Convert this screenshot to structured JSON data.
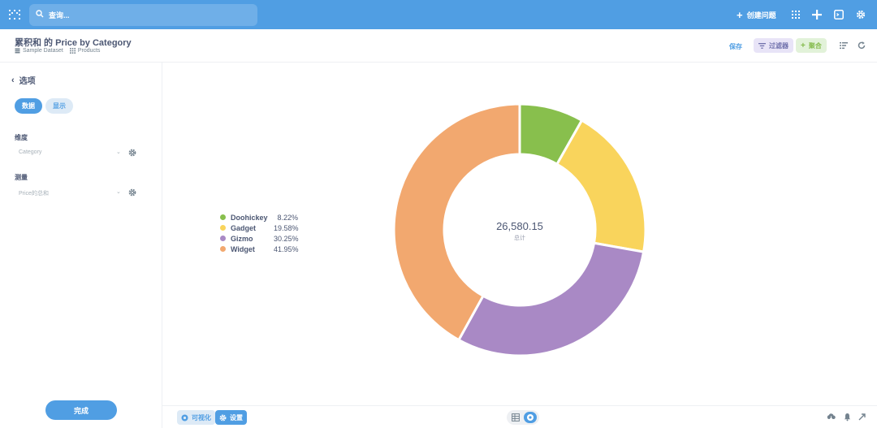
{
  "search": {
    "placeholder": "查询..."
  },
  "topnav": {
    "new_question": "创建问题"
  },
  "header": {
    "title": "累积和 的 Price by Category",
    "database": "Sample Dataset",
    "table": "Products",
    "save": "保存",
    "filter": "过滤器",
    "summarize": "聚合"
  },
  "sidebar": {
    "back": "选项",
    "tab_data": "数据",
    "tab_display": "显示",
    "dimension_label": "维度",
    "dimension_value": "Category",
    "measure_label": "测量",
    "measure_value": "Price的总和",
    "done": "完成"
  },
  "chart_data": {
    "type": "pie",
    "categories": [
      "Doohickey",
      "Gadget",
      "Gizmo",
      "Widget"
    ],
    "values": [
      8.22,
      19.58,
      30.25,
      41.95
    ],
    "labels": [
      "8.22%",
      "19.58%",
      "30.25%",
      "41.95%"
    ],
    "colors": [
      "#88bf4d",
      "#f9d45c",
      "#a989c5",
      "#f2a86f"
    ],
    "total": "26,580.15",
    "total_label": "总计",
    "legend_position": "left"
  },
  "footer": {
    "visualize": "可视化",
    "settings": "设置"
  }
}
